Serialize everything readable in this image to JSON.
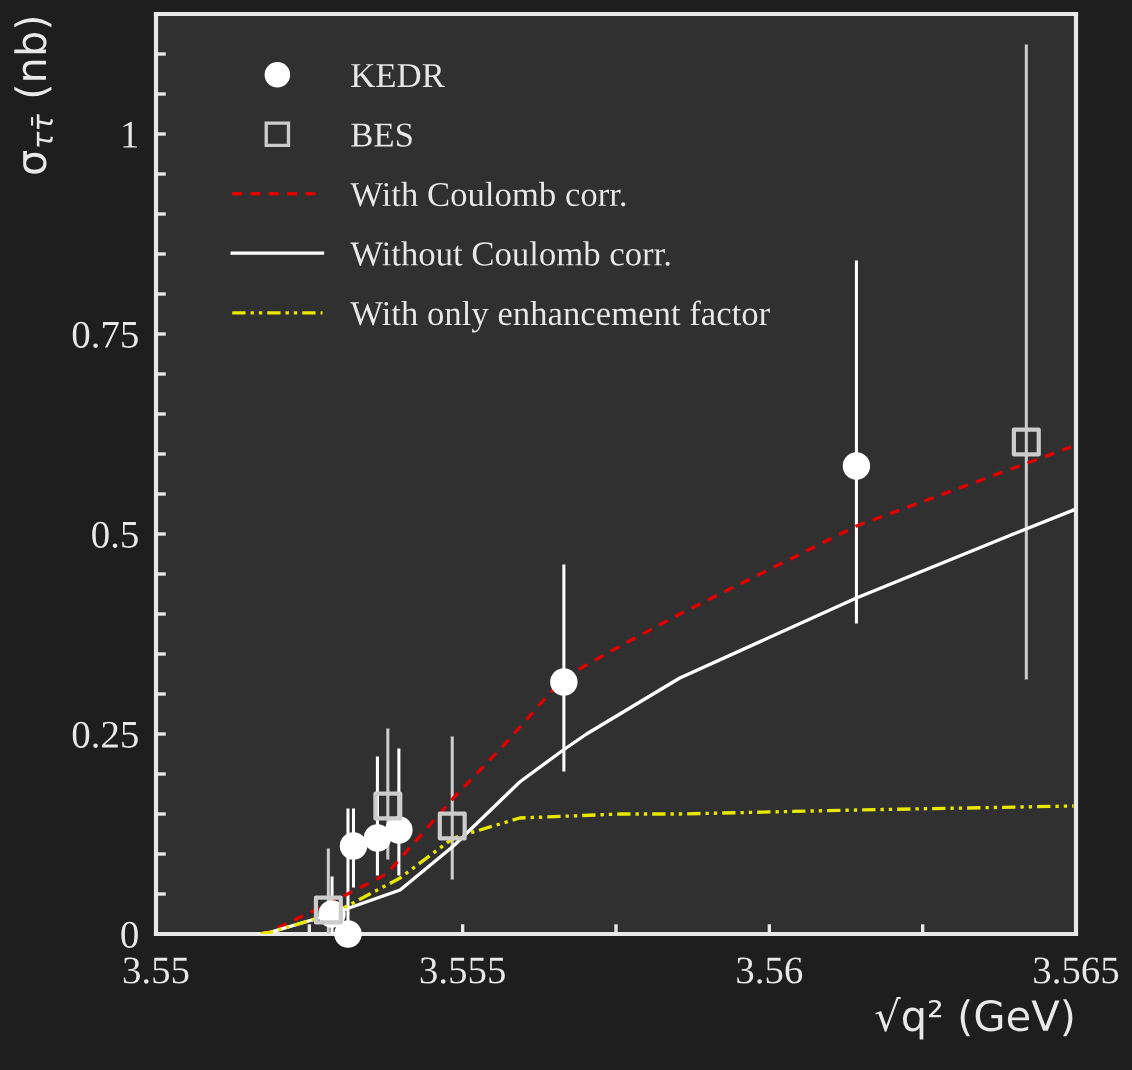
{
  "chart_data": {
    "type": "scatter",
    "xlabel": "√q² (GeV)",
    "ylabel": "σ$_{ττ̄}$ (nb)",
    "xlim": [
      3.55,
      3.565
    ],
    "ylim": [
      0,
      1.15
    ],
    "xticks": [
      3.55,
      {
        "value": 3.5525,
        "label": null
      },
      3.555,
      {
        "value": 3.5575,
        "label": null
      },
      3.56,
      {
        "value": 3.5625,
        "label": null
      },
      3.565
    ],
    "yticks": [
      0,
      {
        "value": 0.05,
        "label": null
      },
      {
        "value": 0.1,
        "label": null
      },
      {
        "value": 0.15,
        "label": null
      },
      {
        "value": 0.2,
        "label": null
      },
      0.25,
      {
        "value": 0.3,
        "label": null
      },
      {
        "value": 0.35,
        "label": null
      },
      {
        "value": 0.4,
        "label": null
      },
      {
        "value": 0.45,
        "label": null
      },
      0.5,
      {
        "value": 0.55,
        "label": null
      },
      {
        "value": 0.6,
        "label": null
      },
      {
        "value": 0.65,
        "label": null
      },
      {
        "value": 0.7,
        "label": null
      },
      0.75,
      {
        "value": 0.8,
        "label": null
      },
      {
        "value": 0.85,
        "label": null
      },
      {
        "value": 0.9,
        "label": null
      },
      {
        "value": 0.95,
        "label": null
      },
      1,
      {
        "value": 1.05,
        "label": null
      },
      {
        "value": 1.1,
        "label": null
      }
    ],
    "grid": false,
    "legend": "top left",
    "series": [
      {
        "name": "KEDR",
        "marker": "circle",
        "color": "#ffffff",
        "x": [
          3.55287,
          3.55313,
          3.55322,
          3.55361,
          3.55396,
          3.55665,
          3.56142
        ],
        "values": [
          0.025,
          0,
          0.11,
          0.12,
          0.13,
          0.315,
          0.585
        ],
        "errors": [
          [
            0,
            0.07
          ],
          [
            0,
            0.155
          ],
          [
            0.06,
            0.155
          ],
          [
            0.075,
            0.22
          ],
          [
            0.075,
            0.23
          ],
          [
            0.205,
            0.46
          ],
          [
            0.39,
            0.84
          ]
        ]
      },
      {
        "name": "BES",
        "marker": "square",
        "color": "#cccccc",
        "x": [
          3.55281,
          3.55378,
          3.55483,
          3.56419
        ],
        "values": [
          0.03,
          0.16,
          0.135,
          0.615
        ],
        "errors": [
          [
            0,
            0.105
          ],
          [
            0.095,
            0.255
          ],
          [
            0.07,
            0.245
          ],
          [
            0.32,
            1.11
          ]
        ]
      },
      {
        "name": "With Coulomb corr.",
        "type": "line",
        "line_style": "dashed",
        "color": "#e00000",
        "x": [
          3.5517,
          3.55186,
          3.55287,
          3.55376,
          3.55485,
          3.55572,
          3.55664,
          3.55757,
          3.55854,
          3.56142,
          3.56496
        ],
        "values": [
          0,
          0.003,
          0.04,
          0.075,
          0.17,
          0.24,
          0.32,
          0.36,
          0.4,
          0.51,
          0.61
        ]
      },
      {
        "name": "Without Coulomb corr.",
        "type": "line",
        "line_style": "solid",
        "color": "#ffffff",
        "x": [
          3.5517,
          3.55186,
          3.55287,
          3.55398,
          3.55485,
          3.55593,
          3.55664,
          3.55702,
          3.55854,
          3.56142,
          3.56398,
          3.56496
        ],
        "values": [
          0,
          0.002,
          0.025,
          0.055,
          0.11,
          0.19,
          0.23,
          0.25,
          0.32,
          0.42,
          0.5,
          0.53
        ]
      },
      {
        "name": "With only enhancement factor",
        "type": "line",
        "line_style": "dotted",
        "color": "#e8e800",
        "x": [
          3.5517,
          3.55186,
          3.55287,
          3.55398,
          3.55485,
          3.55593,
          3.55757,
          3.55854,
          3.56142,
          3.56496
        ],
        "values": [
          0,
          0.002,
          0.025,
          0.07,
          0.12,
          0.145,
          0.15,
          0.15,
          0.155,
          0.16
        ]
      }
    ]
  }
}
